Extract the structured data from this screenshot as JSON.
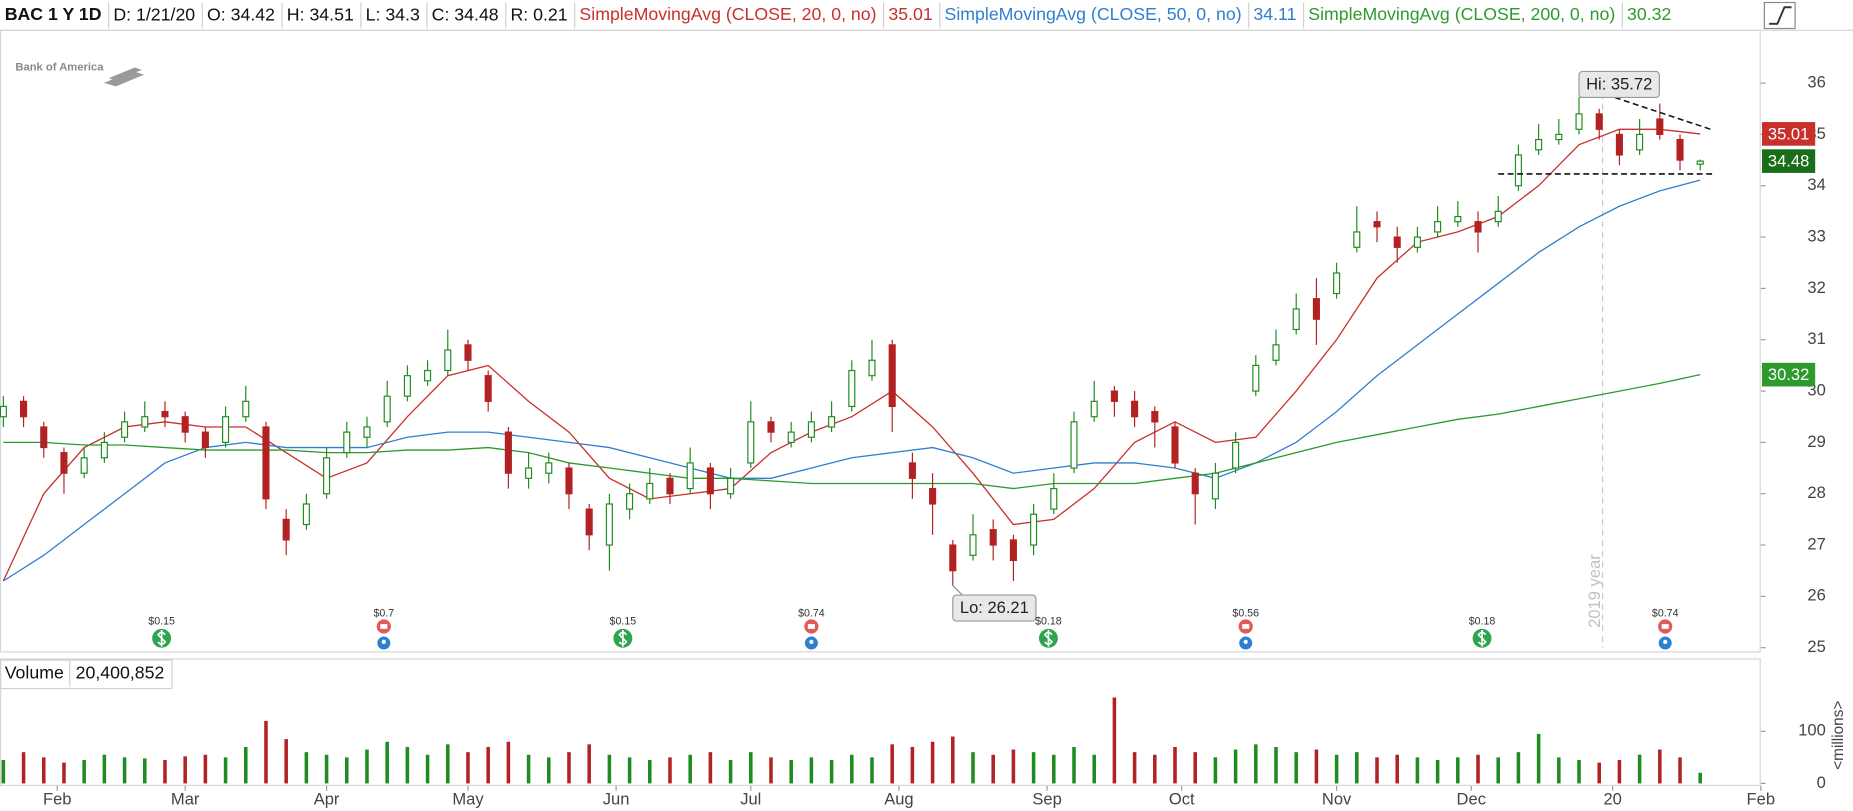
{
  "chart_data": {
    "type": "candlestick",
    "symbol": "BAC 1 Y 1D",
    "header": [
      {
        "label": "D:",
        "value": "1/21/20"
      },
      {
        "label": "O:",
        "value": 34.42
      },
      {
        "label": "H:",
        "value": 34.51
      },
      {
        "label": "L:",
        "value": 34.3
      },
      {
        "label": "C:",
        "value": 34.48
      },
      {
        "label": "R:",
        "value": 0.21
      }
    ],
    "logo": "Bank of America",
    "xlim": [
      -0.5,
      261
    ],
    "xticks": [
      {
        "value": 8,
        "label": "Feb"
      },
      {
        "value": 27,
        "label": "Mar"
      },
      {
        "value": 48,
        "label": "Apr"
      },
      {
        "value": 69,
        "label": "May"
      },
      {
        "value": 91,
        "label": "Jun"
      },
      {
        "value": 111,
        "label": "Jul"
      },
      {
        "value": 133,
        "label": "Aug"
      },
      {
        "value": 155,
        "label": "Sep"
      },
      {
        "value": 175,
        "label": "Oct"
      },
      {
        "value": 198,
        "label": "Nov"
      },
      {
        "value": 218,
        "label": "Dec"
      },
      {
        "value": 239,
        "label": "20"
      },
      {
        "value": 261,
        "label": "Feb"
      }
    ],
    "ylim": [
      24.93,
      37.04
    ],
    "yticks": [
      25,
      26,
      27,
      28,
      29,
      30,
      31,
      32,
      33,
      34,
      35,
      36
    ],
    "up_color": "#1e8c1e",
    "down_color": "#b22222",
    "last_color": "#1a6e1a",
    "candles": {
      "x": [
        0,
        3,
        6,
        9,
        12,
        15,
        18,
        21,
        24,
        27,
        30,
        33,
        36,
        39,
        42,
        45,
        48,
        51,
        54,
        57,
        60,
        63,
        66,
        69,
        72,
        75,
        78,
        81,
        84,
        87,
        90,
        93,
        96,
        99,
        102,
        105,
        108,
        111,
        114,
        117,
        120,
        123,
        126,
        129,
        132,
        135,
        138,
        141,
        144,
        147,
        150,
        153,
        156,
        159,
        162,
        165,
        168,
        171,
        174,
        177,
        180,
        183,
        186,
        189,
        192,
        195,
        198,
        201,
        204,
        207,
        210,
        213,
        216,
        219,
        222,
        225,
        228,
        231,
        234,
        237,
        240,
        243,
        246,
        249,
        252
      ],
      "open": [
        29.5,
        29.8,
        29.3,
        28.8,
        28.4,
        28.7,
        29.1,
        29.3,
        29.6,
        29.5,
        29.2,
        29.0,
        29.5,
        29.3,
        27.5,
        27.4,
        28.0,
        28.8,
        29.1,
        29.4,
        29.9,
        30.2,
        30.4,
        30.9,
        30.3,
        29.2,
        28.3,
        28.4,
        28.5,
        27.7,
        27.0,
        27.7,
        27.9,
        28.3,
        28.1,
        28.5,
        28.0,
        28.6,
        29.4,
        29.0,
        29.1,
        29.3,
        29.7,
        30.3,
        30.9,
        28.6,
        28.1,
        27.0,
        26.8,
        27.3,
        27.1,
        27.0,
        27.7,
        28.5,
        29.5,
        30.0,
        29.8,
        29.6,
        29.3,
        28.4,
        27.9,
        28.5,
        30.0,
        30.6,
        31.2,
        31.8,
        31.9,
        32.8,
        33.3,
        33.0,
        32.8,
        33.1,
        33.3,
        33.3,
        33.3,
        34.0,
        34.7,
        34.9,
        35.1,
        35.4,
        35.0,
        34.7,
        35.3,
        34.9,
        34.42
      ],
      "high": [
        29.9,
        29.9,
        29.4,
        28.9,
        28.9,
        29.2,
        29.6,
        29.8,
        29.8,
        29.6,
        29.3,
        29.7,
        30.1,
        29.4,
        27.7,
        28.0,
        28.9,
        29.4,
        29.5,
        30.2,
        30.5,
        30.6,
        31.2,
        31.0,
        30.4,
        29.3,
        28.8,
        28.8,
        28.6,
        27.8,
        28.0,
        28.2,
        28.5,
        28.4,
        28.9,
        28.6,
        28.5,
        29.8,
        29.5,
        29.4,
        29.6,
        29.8,
        30.6,
        31.0,
        31.0,
        28.8,
        28.4,
        27.1,
        27.6,
        27.5,
        27.2,
        27.8,
        28.4,
        29.6,
        30.2,
        30.1,
        30.0,
        29.7,
        29.4,
        28.5,
        28.6,
        29.2,
        30.7,
        31.2,
        31.9,
        32.2,
        32.5,
        33.6,
        33.5,
        33.2,
        33.2,
        33.6,
        33.7,
        33.5,
        33.8,
        34.8,
        35.2,
        35.3,
        35.72,
        35.5,
        35.1,
        35.3,
        35.6,
        35.0,
        34.51
      ],
      "low": [
        29.3,
        29.3,
        28.7,
        28.0,
        28.3,
        28.6,
        29.0,
        29.2,
        29.3,
        29.0,
        28.7,
        28.9,
        29.4,
        27.7,
        26.8,
        27.3,
        27.9,
        28.7,
        28.9,
        29.3,
        29.8,
        30.1,
        30.3,
        30.4,
        29.6,
        28.1,
        28.1,
        28.2,
        27.7,
        26.9,
        26.5,
        27.5,
        27.8,
        27.8,
        28.0,
        27.7,
        27.9,
        28.5,
        29.0,
        28.9,
        29.0,
        29.2,
        29.6,
        30.2,
        29.2,
        27.9,
        27.2,
        26.21,
        26.7,
        26.7,
        26.3,
        26.8,
        27.6,
        28.4,
        29.4,
        29.5,
        29.3,
        28.9,
        28.5,
        27.4,
        27.7,
        28.4,
        29.9,
        30.5,
        31.1,
        30.9,
        31.8,
        32.7,
        32.9,
        32.5,
        32.7,
        33.0,
        33.2,
        32.7,
        33.2,
        33.9,
        34.6,
        34.8,
        35.0,
        34.9,
        34.4,
        34.6,
        34.9,
        34.3,
        34.3
      ],
      "close": [
        29.7,
        29.5,
        28.9,
        28.4,
        28.7,
        29.0,
        29.4,
        29.5,
        29.5,
        29.2,
        28.9,
        29.5,
        29.8,
        27.9,
        27.1,
        27.8,
        28.7,
        29.2,
        29.3,
        29.9,
        30.3,
        30.4,
        30.8,
        30.6,
        29.8,
        28.4,
        28.5,
        28.6,
        28.0,
        27.2,
        27.8,
        28.0,
        28.2,
        28.0,
        28.6,
        28.0,
        28.3,
        29.4,
        29.2,
        29.2,
        29.4,
        29.5,
        30.4,
        30.6,
        29.7,
        28.3,
        27.8,
        26.5,
        27.2,
        27.0,
        26.7,
        27.6,
        28.1,
        29.4,
        29.8,
        29.8,
        29.5,
        29.4,
        28.6,
        28.0,
        28.4,
        29.0,
        30.5,
        30.9,
        31.6,
        31.4,
        32.3,
        33.1,
        33.2,
        32.8,
        33.0,
        33.3,
        33.4,
        33.1,
        33.5,
        34.6,
        34.9,
        35.0,
        35.4,
        35.1,
        34.6,
        35.0,
        35.0,
        34.5,
        34.48
      ]
    },
    "annotations": [
      {
        "label": "Hi:",
        "value": 35.72
      },
      {
        "label": "Lo:",
        "value": 26.21
      }
    ],
    "series": [
      {
        "name": "SimpleMovingAvg (CLOSE, 20, 0, no)",
        "color": "#c9302c",
        "x": [
          0,
          6,
          12,
          18,
          24,
          30,
          36,
          42,
          48,
          54,
          60,
          66,
          72,
          78,
          84,
          90,
          96,
          102,
          108,
          114,
          120,
          126,
          132,
          138,
          144,
          150,
          156,
          162,
          168,
          174,
          180,
          186,
          192,
          198,
          204,
          210,
          216,
          222,
          228,
          234,
          240,
          246,
          252
        ],
        "values": [
          26.3,
          28.0,
          28.9,
          29.3,
          29.4,
          29.3,
          29.3,
          28.8,
          28.3,
          28.6,
          29.5,
          30.3,
          30.5,
          29.8,
          29.2,
          28.3,
          27.9,
          28.0,
          28.1,
          28.8,
          29.2,
          29.5,
          30.0,
          29.3,
          28.4,
          27.4,
          27.5,
          28.1,
          29.0,
          29.4,
          29.0,
          29.1,
          30.0,
          31.0,
          32.2,
          32.9,
          33.1,
          33.4,
          34.0,
          34.8,
          35.1,
          35.1,
          35.01
        ]
      },
      {
        "name": "SimpleMovingAvg (CLOSE, 50, 0, no)",
        "color": "#2f7fd1",
        "x": [
          0,
          6,
          12,
          18,
          24,
          30,
          36,
          42,
          48,
          54,
          60,
          66,
          72,
          78,
          84,
          90,
          96,
          102,
          108,
          114,
          120,
          126,
          132,
          138,
          144,
          150,
          156,
          162,
          168,
          174,
          180,
          186,
          192,
          198,
          204,
          210,
          216,
          222,
          228,
          234,
          240,
          246,
          252
        ],
        "values": [
          26.3,
          26.8,
          27.4,
          28.0,
          28.6,
          28.9,
          29.0,
          28.9,
          28.9,
          28.9,
          29.1,
          29.2,
          29.2,
          29.1,
          29.0,
          28.9,
          28.7,
          28.5,
          28.3,
          28.3,
          28.5,
          28.7,
          28.8,
          28.9,
          28.7,
          28.4,
          28.5,
          28.6,
          28.6,
          28.5,
          28.3,
          28.6,
          29.0,
          29.6,
          30.3,
          30.9,
          31.5,
          32.1,
          32.7,
          33.2,
          33.6,
          33.9,
          34.11
        ]
      },
      {
        "name": "SimpleMovingAvg (CLOSE, 200, 0, no)",
        "color": "#2e9a2e",
        "x": [
          0,
          6,
          12,
          18,
          24,
          30,
          36,
          42,
          48,
          54,
          60,
          66,
          72,
          78,
          84,
          90,
          96,
          102,
          108,
          114,
          120,
          126,
          132,
          138,
          144,
          150,
          156,
          162,
          168,
          174,
          180,
          186,
          192,
          198,
          204,
          210,
          216,
          222,
          228,
          234,
          240,
          246,
          252
        ],
        "values": [
          29.0,
          29.0,
          28.95,
          28.95,
          28.9,
          28.85,
          28.85,
          28.85,
          28.8,
          28.8,
          28.85,
          28.85,
          28.9,
          28.8,
          28.6,
          28.5,
          28.4,
          28.3,
          28.3,
          28.25,
          28.2,
          28.2,
          28.2,
          28.2,
          28.2,
          28.1,
          28.2,
          28.2,
          28.2,
          28.3,
          28.4,
          28.6,
          28.8,
          29.0,
          29.15,
          29.3,
          29.45,
          29.55,
          29.7,
          29.85,
          30.0,
          30.15,
          30.32
        ]
      }
    ],
    "trendlines": [
      {
        "x": [
          234,
          254
        ],
        "y": [
          35.95,
          35.08
        ]
      },
      {
        "x": [
          222,
          254
        ],
        "y": [
          34.23,
          34.23
        ]
      }
    ],
    "year_marker": {
      "x": 237.5,
      "label": "2019 year"
    },
    "events": [
      {
        "x": 23.5,
        "label": "$0.15",
        "kind": "dividend"
      },
      {
        "x": 56.5,
        "label": "$0.7",
        "kind": "earnings"
      },
      {
        "x": 92,
        "label": "$0.15",
        "kind": "dividend"
      },
      {
        "x": 120,
        "label": "$0.74",
        "kind": "earnings"
      },
      {
        "x": 155.2,
        "label": "$0.18",
        "kind": "dividend"
      },
      {
        "x": 184.5,
        "label": "$0.56",
        "kind": "earnings"
      },
      {
        "x": 219.6,
        "label": "$0.18",
        "kind": "dividend"
      },
      {
        "x": 246.8,
        "label": "$0.74",
        "kind": "earnings"
      }
    ],
    "volume": {
      "title": "Volume",
      "last_label": "20,400,852",
      "unit": "<millions>",
      "ylim": [
        -5,
        240
      ],
      "yticks": [
        0,
        100
      ],
      "values": [
        45,
        60,
        50,
        40,
        45,
        55,
        50,
        48,
        45,
        52,
        55,
        50,
        70,
        120,
        85,
        60,
        55,
        50,
        65,
        80,
        70,
        55,
        75,
        60,
        70,
        80,
        55,
        50,
        60,
        75,
        55,
        50,
        45,
        50,
        55,
        60,
        45,
        60,
        50,
        45,
        50,
        45,
        55,
        50,
        75,
        70,
        80,
        90,
        60,
        55,
        65,
        60,
        55,
        70,
        55,
        165,
        60,
        55,
        70,
        60,
        50,
        65,
        75,
        70,
        60,
        65,
        55,
        60,
        50,
        55,
        50,
        45,
        50,
        55,
        50,
        60,
        95,
        50,
        45,
        40,
        45,
        55,
        65,
        50,
        20.400852
      ]
    }
  }
}
